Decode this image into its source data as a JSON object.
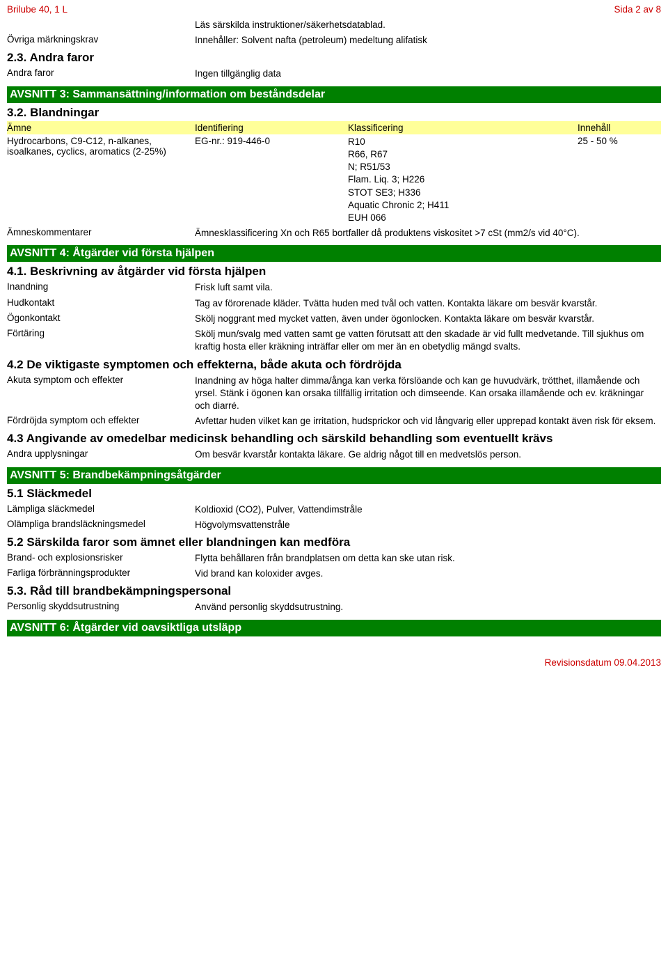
{
  "header": {
    "left": "Brilube 40, 1 L",
    "right": "Sida 2 av 8"
  },
  "top_block": {
    "row0_value": "Läs särskilda instruktioner/säkerhetsdatablad.",
    "row1_label": "Övriga märkningskrav",
    "row1_value": "Innehåller: Solvent nafta (petroleum) medeltung alifatisk",
    "sub23": "2.3. Andra faror",
    "row2_label": "Andra faror",
    "row2_value": "Ingen tillgänglig data"
  },
  "section3": {
    "title": "AVSNITT 3: Sammansättning/information om beståndsdelar",
    "sub32": "3.2. Blandningar",
    "th_a": "Ämne",
    "th_b": "Identifiering",
    "th_c": "Klassificering",
    "th_d": "Innehåll",
    "r1_a": "Hydrocarbons, C9-C12, n-alkanes, isoalkanes, cyclics, aromatics (2-25%)",
    "r1_b": "EG-nr.: 919-446-0",
    "r1_c": "R10\nR66, R67\nN; R51/53\nFlam. Liq. 3; H226\nSTOT SE3; H336\nAquatic Chronic 2; H411\nEUH 066",
    "r1_d": "25 - 50 %",
    "r2_label": "Ämneskommentarer",
    "r2_value": "Ämnesklassificering Xn och R65 bortfaller då produktens viskositet >7 cSt (mm2/s vid 40°C)."
  },
  "section4": {
    "title": "AVSNITT 4: Åtgärder vid första hjälpen",
    "sub41": "4.1. Beskrivning av åtgärder vid första hjälpen",
    "r1l": "Inandning",
    "r1v": "Frisk luft samt vila.",
    "r2l": "Hudkontakt",
    "r2v": "Tag av förorenade kläder. Tvätta huden med tvål och vatten. Kontakta läkare om besvär kvarstår.",
    "r3l": "Ögonkontakt",
    "r3v": "Skölj noggrant med mycket vatten, även under ögonlocken. Kontakta läkare om besvär kvarstår.",
    "r4l": "Förtäring",
    "r4v": "Skölj mun/svalg med vatten samt ge vatten förutsatt att den skadade är vid fullt medvetande. Till sjukhus om kraftig hosta eller kräkning inträffar eller om mer än en obetydlig mängd svalts.",
    "sub42": "4.2 De viktigaste symptomen och effekterna, både akuta och fördröjda",
    "r5l": "Akuta symptom och effekter",
    "r5v": "Inandning av höga halter dimma/ånga kan verka förslöande och kan ge huvudvärk, trötthet, illamående och yrsel. Stänk i ögonen kan orsaka tillfällig irritation och dimseende. Kan orsaka illamående och ev. kräkningar och diarré.",
    "r6l": "Fördröjda symptom och effekter",
    "r6v": "Avfettar huden vilket kan ge irritation, hudsprickor och vid långvarig eller upprepad kontakt även risk för eksem.",
    "sub43": "4.3 Angivande av omedelbar medicinsk behandling och särskild behandling som eventuellt krävs",
    "r7l": "Andra upplysningar",
    "r7v": "Om besvär kvarstår kontakta läkare. Ge aldrig något till en medvetslös person."
  },
  "section5": {
    "title": "AVSNITT 5: Brandbekämpningsåtgärder",
    "sub51": "5.1 Släckmedel",
    "r1l": "Lämpliga släckmedel",
    "r1v": "Koldioxid (CO2), Pulver, Vattendimstråle",
    "r2l": "Olämpliga brandsläckningsmedel",
    "r2v": "Högvolymsvattenstråle",
    "sub52": "5.2 Särskilda faror som ämnet eller blandningen kan medföra",
    "r3l": "Brand- och explosionsrisker",
    "r3v": "Flytta behållaren från brandplatsen om detta kan ske utan risk.",
    "r4l": "Farliga förbränningsprodukter",
    "r4v": "Vid brand kan koloxider avges.",
    "sub53": "5.3. Råd till brandbekämpningspersonal",
    "r5l": "Personlig skyddsutrustning",
    "r5v": "Använd personlig skyddsutrustning."
  },
  "section6": {
    "title": "AVSNITT 6: Åtgärder vid oavsiktliga utsläpp"
  },
  "footer": {
    "text": "Revisionsdatum 09.04.2013"
  }
}
